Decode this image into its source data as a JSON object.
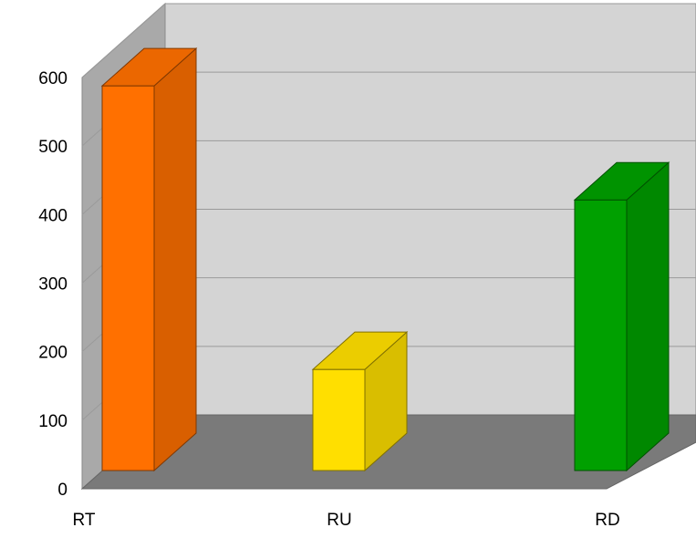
{
  "chart_data": {
    "type": "bar",
    "style": "3d",
    "categories": [
      "RT",
      "RU",
      "RD"
    ],
    "values": [
      590,
      155,
      415
    ],
    "colors": [
      "#ff7000",
      "#ffdf00",
      "#00a000"
    ],
    "ylim": [
      0,
      600
    ],
    "yticks": [
      0,
      100,
      200,
      300,
      400,
      500,
      600
    ],
    "grid": true,
    "legend": "none",
    "title": "",
    "xlabel": "",
    "ylabel": ""
  }
}
